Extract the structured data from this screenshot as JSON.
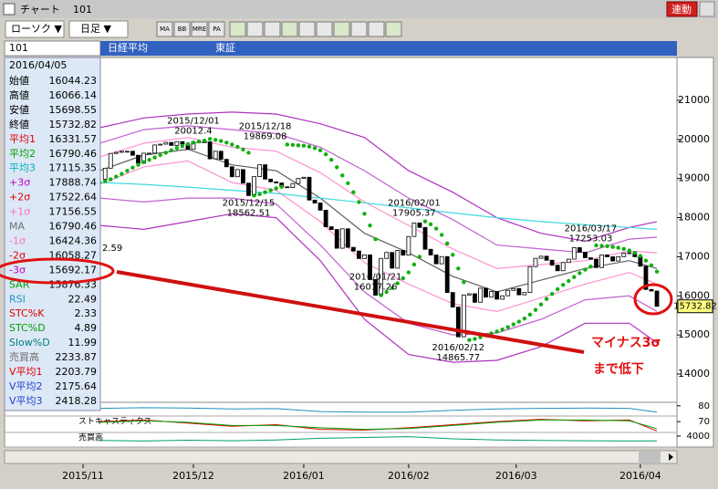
{
  "window": {
    "title": "チャート",
    "code": "101",
    "link_button": "連動"
  },
  "toolbar": {
    "chart_kind": "ローソク ▼",
    "period": "日足 ▼",
    "icons": [
      "MA",
      "BB",
      "MRE",
      "PA"
    ]
  },
  "info": {
    "code": "101",
    "name": "日経平均",
    "market": "東証"
  },
  "panel": {
    "date": "2016/04/05",
    "rows": [
      {
        "label": "始値",
        "value": 16044.23,
        "color": "#000000"
      },
      {
        "label": "高値",
        "value": 16066.14,
        "color": "#000000"
      },
      {
        "label": "安値",
        "value": 15698.55,
        "color": "#000000"
      },
      {
        "label": "終値",
        "value": 15732.82,
        "color": "#000000"
      },
      {
        "label": "平均1",
        "value": 16331.57,
        "color": "#e00000"
      },
      {
        "label": "平均2",
        "value": 16790.46,
        "color": "#00a000"
      },
      {
        "label": "平均3",
        "value": 17115.35,
        "color": "#00b0c0"
      },
      {
        "label": "+3σ",
        "value": 17888.74,
        "color": "#c000c0"
      },
      {
        "label": "+2σ",
        "value": 17522.64,
        "color": "#e00000"
      },
      {
        "label": "+1σ",
        "value": 17156.55,
        "color": "#ff70c0"
      },
      {
        "label": "MA",
        "value": 16790.46,
        "color": "#707070"
      },
      {
        "label": "-1σ",
        "value": 16424.36,
        "color": "#ff70c0"
      },
      {
        "label": "-2σ",
        "value": 16058.27,
        "color": "#e00000"
      },
      {
        "label": "-3σ",
        "value": 15692.17,
        "color": "#c000c0"
      },
      {
        "label": "SAR",
        "value": 15876.33,
        "color": "#00a000"
      },
      {
        "label": "RSI",
        "value": 22.49,
        "color": "#2090c0"
      },
      {
        "label": "STC%K",
        "value": 2.33,
        "color": "#e00000"
      },
      {
        "label": "STC%D",
        "value": 4.89,
        "color": "#00a000"
      },
      {
        "label": "Slow%D",
        "value": 11.99,
        "color": "#008080"
      },
      {
        "label": "売買高",
        "value": 2233.87,
        "color": "#707070"
      },
      {
        "label": "V平均1",
        "value": 2203.79,
        "color": "#e00000"
      },
      {
        "label": "V平均2",
        "value": 2175.64,
        "color": "#2040d0"
      },
      {
        "label": "V平均3",
        "value": 2418.28,
        "color": "#2040d0"
      }
    ]
  },
  "chart_data": {
    "type": "candlestick",
    "close": [
      18983,
      19265,
      19642,
      19671,
      19697,
      19698,
      19596,
      19393,
      19649,
      19650,
      19859,
      19879,
      19924,
      19847,
      19944,
      19883,
      19747,
      19938,
      19939,
      19940,
      19504,
      19698,
      19492,
      19301,
      19046,
      19230,
      18883,
      18565,
      19049,
      19353,
      18986,
      18916,
      18886,
      18789,
      18769,
      18873,
      19002,
      19033,
      18450,
      18374,
      18191,
      17767,
      17697,
      17218,
      17715,
      17240,
      17147,
      16955,
      17048,
      16416,
      16017,
      16958,
      17110,
      16708,
      17163,
      17041,
      17518,
      17865,
      17750,
      17191,
      17044,
      16819,
      17004,
      16085,
      15713,
      14952,
      16022,
      16054,
      15836,
      16196,
      15967,
      16111,
      15915,
      16002,
      16140,
      16188,
      16026,
      16085,
      16747,
      16960,
      17014,
      16911,
      16784,
      16642,
      16852,
      16939,
      17233,
      17117,
      16974,
      16936,
      16724,
      17048,
      17000,
      16892,
      17002,
      17092,
      17103,
      17001,
      16759,
      16164,
      16123,
      15732.82
    ],
    "up_color": "#ffffff",
    "down_color": "#000000",
    "xlim": [
      -3.5,
      104.3
    ],
    "xticks": [
      {
        "value": -3,
        "label": "2015/11"
      },
      {
        "value": 17,
        "label": "2015/12"
      },
      {
        "value": 37,
        "label": "2016/01"
      },
      {
        "value": 56,
        "label": "2016/02"
      },
      {
        "value": 75.5,
        "label": "2016/03"
      },
      {
        "value": 98,
        "label": "2016/04"
      }
    ],
    "ylim": [
      13300,
      21350
    ],
    "yticks": [
      14000,
      15000,
      16000,
      17000,
      18000,
      19000,
      20000,
      21000
    ],
    "bands": {
      "x": [
        0,
        8,
        16,
        24,
        32,
        40,
        48,
        56,
        64,
        72,
        80,
        88,
        96,
        101
      ],
      "series": [
        {
          "color": "#b030c0",
          "values": [
            20300,
            20550,
            20650,
            20700,
            20650,
            20400,
            20050,
            19200,
            18650,
            18000,
            17600,
            17400,
            17750,
            17900
          ]
        },
        {
          "color": "#c060d0",
          "values": [
            19900,
            20250,
            20350,
            20250,
            20150,
            19800,
            19200,
            18500,
            17950,
            17300,
            17200,
            17100,
            17450,
            17500
          ]
        },
        {
          "color": "#ff90d0",
          "values": [
            19550,
            19900,
            20050,
            19800,
            19700,
            19150,
            18400,
            17800,
            17200,
            16700,
            16800,
            16900,
            17150,
            17100
          ]
        },
        {
          "color": "#606060",
          "values": [
            19200,
            19600,
            19750,
            19350,
            19200,
            18500,
            17600,
            17100,
            16500,
            16100,
            16400,
            16700,
            16900,
            16700
          ]
        },
        {
          "color": "#ff90d0",
          "values": [
            18850,
            19300,
            19450,
            18900,
            18700,
            17900,
            16850,
            16300,
            15800,
            15600,
            15950,
            16300,
            16600,
            16300
          ]
        },
        {
          "color": "#c060d0",
          "values": [
            18500,
            18400,
            18500,
            18500,
            18350,
            17300,
            16100,
            15300,
            15000,
            15050,
            15400,
            15900,
            16000,
            15600
          ]
        },
        {
          "color": "#b030c0",
          "values": [
            17800,
            17700,
            17900,
            18100,
            18000,
            16900,
            15400,
            14500,
            14300,
            14350,
            14700,
            15300,
            15300,
            14800
          ]
        },
        {
          "color": "#40d8e0",
          "values": [
            18900,
            18850,
            18780,
            18700,
            18620,
            18500,
            18380,
            18250,
            18120,
            18000,
            17900,
            17820,
            17750,
            17700
          ]
        }
      ]
    },
    "sar": {
      "color": "#10b010",
      "values": [
        18900,
        18930,
        18980,
        19050,
        19120,
        19200,
        19280,
        19350,
        19420,
        19480,
        19540,
        19600,
        19660,
        19720,
        19780,
        19830,
        19880,
        19920,
        19950,
        19970,
        20012,
        19990,
        19960,
        19920,
        19870,
        19810,
        19740,
        19660,
        18565,
        18600,
        18650,
        18700,
        18750,
        18790,
        19869,
        19860,
        19850,
        19840,
        19820,
        19780,
        19720,
        19620,
        19480,
        19290,
        19080,
        18880,
        18650,
        18400,
        18100,
        17800,
        17450,
        16017,
        16100,
        16200,
        16320,
        16450,
        16600,
        16800,
        17000,
        17905,
        17830,
        17720,
        17560,
        17340,
        17050,
        16700,
        16350,
        14870,
        14900,
        14940,
        14990,
        15040,
        15090,
        15140,
        15200,
        15270,
        15340,
        15420,
        15520,
        15640,
        15780,
        15920,
        16050,
        16170,
        16280,
        16380,
        16480,
        16580,
        16670,
        16750,
        17290,
        17280,
        17270,
        17250,
        17230,
        17200,
        17160,
        17100,
        17020,
        16900,
        16780,
        16620
      ]
    },
    "annotations": [
      {
        "date": "2015/12/01",
        "value": 20012.4,
        "x": 17
      },
      {
        "date": "2015/12/18",
        "value": 19869.08,
        "x": 30
      },
      {
        "date": "2015/12/15",
        "value": 18562.51,
        "x": 27
      },
      {
        "date": "2016/01/21",
        "value": 16017.26,
        "x": 50
      },
      {
        "date": "2016/02/01",
        "value": 17905.37,
        "x": 57
      },
      {
        "date": "2016/02/12",
        "value": 14865.77,
        "x": 65
      },
      {
        "date": "2016/03/17",
        "value": 17253.03,
        "x": 89
      }
    ],
    "cut_label": "2.59",
    "last_price": 15732.82,
    "indicators": [
      {
        "label": "RSI",
        "ylim": [
          0,
          100
        ],
        "yticks": [
          80
        ],
        "series": [
          {
            "color": "#2090c0",
            "values": [
              60,
              65,
              62,
              55,
              58,
              35,
              30,
              30,
              45,
              55,
              60,
              62,
              60,
              30
            ]
          }
        ]
      },
      {
        "label": "ストキャスティクス",
        "ylim": [
          0,
          100
        ],
        "yticks": [
          70
        ],
        "series": [
          {
            "color": "#e00000",
            "values": [
              70,
              80,
              60,
              40,
              50,
              20,
              15,
              30,
              50,
              70,
              85,
              75,
              80,
              10
            ]
          },
          {
            "color": "#00a000",
            "values": [
              65,
              75,
              65,
              45,
              45,
              30,
              20,
              25,
              45,
              65,
              80,
              80,
              75,
              25
            ]
          }
        ]
      },
      {
        "label": "売買高",
        "ylim": [
          0,
          5000
        ],
        "yticks": [
          4000
        ],
        "series": [
          {
            "color": "#00a060",
            "values": [
              2400,
              2200,
              2500,
              2300,
              2600,
              3200,
              3500,
              3800,
              3000,
              2600,
              2400,
              2300,
              2200,
              2234
            ]
          }
        ]
      }
    ]
  },
  "note": {
    "lines": [
      "マイナス3σ",
      "まで低下"
    ]
  }
}
